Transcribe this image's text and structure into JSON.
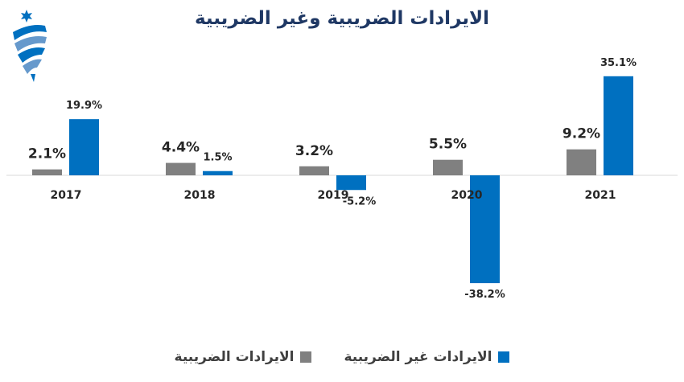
{
  "colors": {
    "tax": "#808080",
    "nontax": "#0070c0",
    "title": "#1f3864"
  },
  "chart_data": {
    "type": "bar",
    "title": "الايرادات الضريبية وغير الضريبية",
    "categories": [
      "2017",
      "2018",
      "2019",
      "2020",
      "2021"
    ],
    "series": [
      {
        "name": "الايرادات الضريبية",
        "values": [
          2.1,
          4.4,
          3.2,
          5.5,
          9.2
        ],
        "labels": [
          "2.1%",
          "4.4%",
          "3.2%",
          "5.5%",
          "9.2%"
        ]
      },
      {
        "name": "الايرادات غير الضريبية",
        "values": [
          19.9,
          1.5,
          -5.2,
          -38.2,
          35.1
        ],
        "labels": [
          "19.9%",
          "1.5%",
          "-5.2%",
          "-38.2%",
          "35.1%"
        ]
      }
    ],
    "ylim": [
      -40,
      40
    ],
    "grid": false,
    "legend": "bottom"
  }
}
